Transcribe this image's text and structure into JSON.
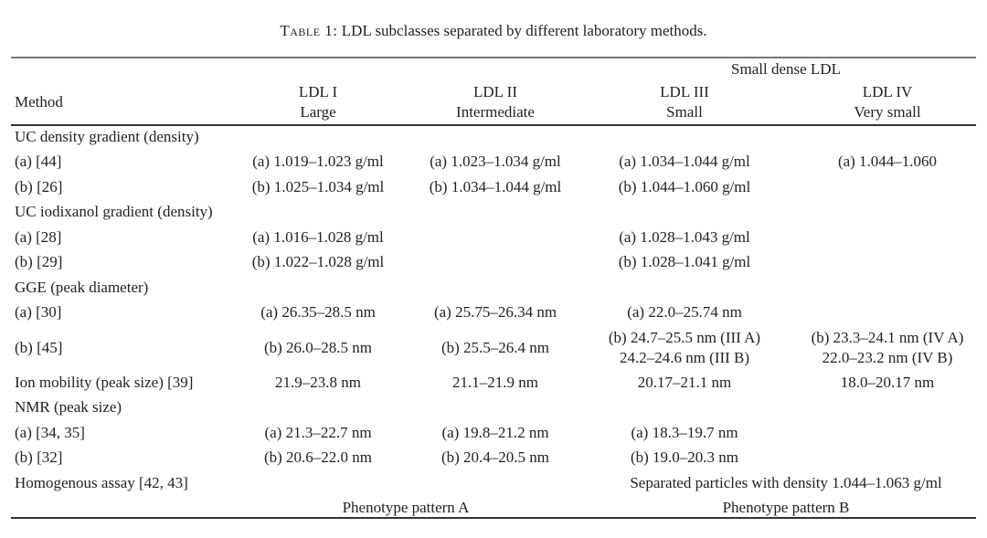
{
  "caption": {
    "label": "Table 1:",
    "text": " LDL subclasses separated by different laboratory methods."
  },
  "header": {
    "group": "Small dense LDL",
    "method": "Method",
    "columns": [
      {
        "name": "LDL I",
        "size": "Large"
      },
      {
        "name": "LDL II",
        "size": "Intermediate"
      },
      {
        "name": "LDL III",
        "size": "Small"
      },
      {
        "name": "LDL IV",
        "size": "Very small"
      }
    ]
  },
  "rows": [
    {
      "type": "section",
      "method": "UC density gradient (density)"
    },
    {
      "method": "(a) [44]",
      "cells": [
        "(a) 1.019–1.023 g/ml",
        "(a) 1.023–1.034 g/ml",
        "(a) 1.034–1.044 g/ml",
        "(a) 1.044–1.060"
      ]
    },
    {
      "method": "(b) [26]",
      "cells": [
        "(b) 1.025–1.034 g/ml",
        "(b) 1.034–1.044 g/ml",
        "(b) 1.044–1.060 g/ml",
        ""
      ]
    },
    {
      "type": "section",
      "method": "UC iodixanol gradient (density)"
    },
    {
      "method": "(a) [28]",
      "cells": [
        "(a) 1.016–1.028 g/ml",
        "",
        "(a) 1.028–1.043 g/ml",
        ""
      ]
    },
    {
      "method": "(b) [29]",
      "cells": [
        "(b) 1.022–1.028 g/ml",
        "",
        "(b) 1.028–1.041 g/ml",
        ""
      ]
    },
    {
      "type": "section",
      "method": "GGE (peak diameter)"
    },
    {
      "method": "(a) [30]",
      "cells": [
        "(a) 26.35–28.5 nm",
        "(a) 25.75–26.34 nm",
        "(a) 22.0–25.74 nm",
        ""
      ]
    },
    {
      "method": "(b) [45]",
      "cells": [
        "(b) 26.0–28.5 nm",
        "(b) 25.5–26.4 nm",
        "(b) 24.7–25.5 nm (III A)\n24.2–24.6 nm (III B)",
        "(b) 23.3–24.1 nm (IV A)\n22.0–23.2 nm (IV B)"
      ]
    },
    {
      "method": "Ion mobility (peak size) [39]",
      "cells": [
        "21.9–23.8 nm",
        "21.1–21.9 nm",
        "20.17–21.1 nm",
        "18.0–20.17 nm"
      ]
    },
    {
      "type": "section",
      "method": "NMR (peak size)"
    },
    {
      "method": "(a) [34, 35]",
      "cells": [
        "(a) 21.3–22.7 nm",
        "(a) 19.8–21.2 nm",
        "(a) 18.3–19.7 nm",
        ""
      ]
    },
    {
      "method": "(b) [32]",
      "cells": [
        "(b) 20.6–22.0 nm",
        "(b) 20.4–20.5 nm",
        "(b) 19.0–20.3 nm",
        ""
      ]
    },
    {
      "method": "Homogenous assay [42, 43]",
      "cells": [
        "",
        "",
        "Separated particles with density 1.044–1.063 g/ml"
      ],
      "spans": [
        1,
        1,
        2
      ]
    },
    {
      "method": "",
      "cells": [
        "Phenotype pattern A",
        "Phenotype pattern B"
      ],
      "spans": [
        2,
        2
      ]
    }
  ]
}
